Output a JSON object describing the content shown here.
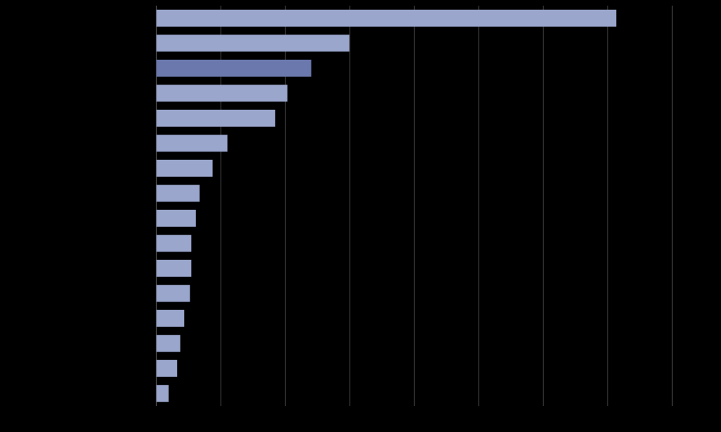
{
  "chart_data": {
    "type": "hbar",
    "categories": [
      null,
      null,
      null,
      null,
      null,
      null,
      null,
      null,
      null,
      null,
      null,
      null,
      null,
      null,
      null,
      null
    ],
    "values": [
      7.13,
      2.99,
      2.4,
      2.03,
      1.84,
      1.1,
      0.87,
      0.67,
      0.61,
      0.54,
      0.54,
      0.52,
      0.43,
      0.37,
      0.32,
      0.19
    ],
    "colors": [
      "#9aa6cc",
      "#9aa6cc",
      "#6a78ad",
      "#9aa6cc",
      "#9aa6cc",
      "#9aa6cc",
      "#9aa6cc",
      "#9aa6cc",
      "#9aa6cc",
      "#9aa6cc",
      "#9aa6cc",
      "#9aa6cc",
      "#9aa6cc",
      "#9aa6cc",
      "#9aa6cc",
      "#9aa6cc"
    ],
    "xlim": [
      0,
      8
    ],
    "xticks": [
      0,
      1,
      2,
      3,
      4,
      5,
      6,
      7,
      8
    ],
    "grid": true,
    "tick_labels": false
  }
}
